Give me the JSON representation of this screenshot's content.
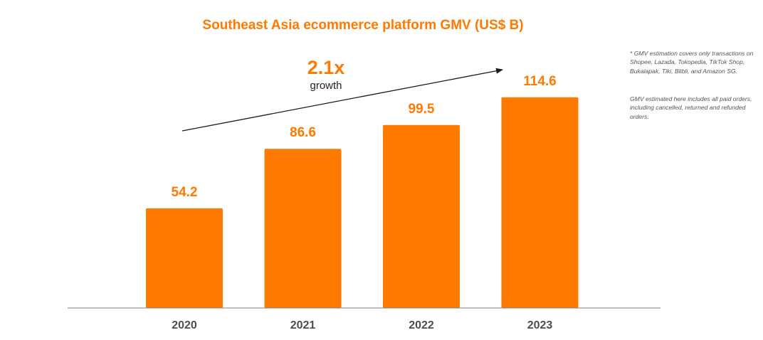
{
  "colors": {
    "accent": "#FF7A00",
    "text": "#4D4D4D",
    "axis": "#7F7F7F",
    "arrow": "#1A1A1A",
    "growth_label": "#222222"
  },
  "chart_data": {
    "type": "bar",
    "title": "Southeast Asia ecommerce platform GMV (US$ B)",
    "categories": [
      "2020",
      "2021",
      "2022",
      "2023"
    ],
    "values": [
      54.2,
      86.6,
      99.5,
      114.6
    ],
    "value_labels": [
      "54.2",
      "86.6",
      "99.5",
      "114.6"
    ],
    "xlabel": "",
    "ylabel": "",
    "ylim": [
      0,
      130
    ],
    "grid": false,
    "legend": "none",
    "annotations": {
      "growth_value": "2.1x",
      "growth_label": "growth",
      "arrow": "upward trend arrow from 2020 to 2023"
    }
  },
  "notes": {
    "coverage": "* GMV estimation covers only transactions on Shopee, Lazada, Tokopedia, TikTok Shop, Bukalapak, Tiki, Blibli, and Amazon SG.",
    "scope": "GMV estimated here includes all paid orders, including cancelled, returned and refunded orders."
  }
}
